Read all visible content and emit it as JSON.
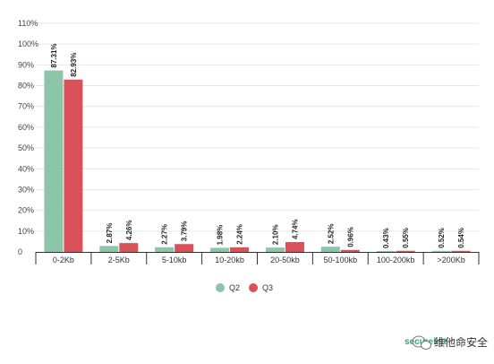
{
  "chart_data": {
    "type": "bar",
    "title": "",
    "xlabel": "",
    "ylabel": "",
    "ylim": [
      0,
      110
    ],
    "y_ticks": [
      "0",
      "10%",
      "20%",
      "30%",
      "40%",
      "50%",
      "60%",
      "70%",
      "80%",
      "90%",
      "100%",
      "110%"
    ],
    "y_tick_values": [
      0,
      10,
      20,
      30,
      40,
      50,
      60,
      70,
      80,
      90,
      100,
      110
    ],
    "grid": true,
    "legend_position": "bottom",
    "categories": [
      "0-2Kb",
      "2-5Kb",
      "5-10kb",
      "10-20kb",
      "20-50kb",
      "50-100kb",
      "100-200kb",
      ">200Kb"
    ],
    "series": [
      {
        "name": "Q2",
        "color": "#8cc5a8",
        "values": [
          87.31,
          2.87,
          2.27,
          1.98,
          2.1,
          2.52,
          0.43,
          0.52
        ],
        "labels": [
          "87.31%",
          "2.87%",
          "2.27%",
          "1.98%",
          "2.10%",
          "2.52%",
          "0.43%",
          "0.52%"
        ]
      },
      {
        "name": "Q3",
        "color": "#d9525a",
        "values": [
          82.93,
          4.26,
          3.79,
          2.24,
          4.74,
          0.96,
          0.55,
          0.54
        ],
        "labels": [
          "82.93%",
          "4.26%",
          "3.79%",
          "2.24%",
          "4.74%",
          "0.96%",
          "0.55%",
          "0.54%"
        ]
      }
    ]
  },
  "watermark": {
    "brand": "securelist",
    "text": "维他命安全",
    "icon": "wechat-icon"
  }
}
